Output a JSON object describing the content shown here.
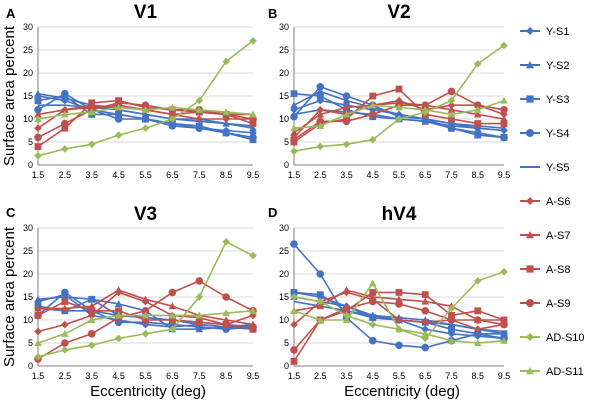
{
  "chart_data": {
    "type": "line",
    "ylabel": "Surface area percent",
    "xlabel": "Eccentricity (deg)",
    "ylim": [
      0,
      30
    ],
    "yticks": [
      0,
      5,
      10,
      15,
      20,
      25,
      30
    ],
    "grid": true,
    "legend_position": "right",
    "categories": [
      "1.5",
      "2.5",
      "3.5",
      "4.5",
      "5.5",
      "6.5",
      "7.5",
      "8.5",
      "9.5"
    ],
    "legend": [
      {
        "name": "Y-S1",
        "color": "#4472C4",
        "marker": "diamond"
      },
      {
        "name": "Y-S2",
        "color": "#4472C4",
        "marker": "triangle"
      },
      {
        "name": "Y-S3",
        "color": "#4472C4",
        "marker": "square"
      },
      {
        "name": "Y-S4",
        "color": "#4472C4",
        "marker": "circle"
      },
      {
        "name": "Y-S5",
        "color": "#4472C4",
        "marker": "none"
      },
      {
        "name": "A-S6",
        "color": "#C0504D",
        "marker": "diamond"
      },
      {
        "name": "A-S7",
        "color": "#C0504D",
        "marker": "triangle"
      },
      {
        "name": "A-S8",
        "color": "#C0504D",
        "marker": "square"
      },
      {
        "name": "A-S9",
        "color": "#C0504D",
        "marker": "circle"
      },
      {
        "name": "AD-S10",
        "color": "#9BBB59",
        "marker": "diamond"
      },
      {
        "name": "AD-S11",
        "color": "#9BBB59",
        "marker": "triangle"
      }
    ],
    "panels": [
      {
        "letter": "A",
        "title": "V1",
        "series": [
          {
            "name": "Y-S1",
            "values": [
              15,
              14,
              12,
              11,
              10,
              9,
              8,
              7.5,
              7
            ]
          },
          {
            "name": "Y-S2",
            "values": [
              15.5,
              14.5,
              13,
              12,
              11,
              10,
              10,
              9,
              8
            ]
          },
          {
            "name": "Y-S3",
            "values": [
              14,
              15,
              11,
              11,
              10,
              9,
              8.5,
              7,
              5.5
            ]
          },
          {
            "name": "Y-S4",
            "values": [
              12,
              15.5,
              12,
              10,
              10,
              8.5,
              8,
              7,
              6
            ]
          },
          {
            "name": "Y-S5",
            "values": [
              13,
              13,
              12.5,
              12,
              11,
              10,
              9.5,
              9,
              8.5
            ]
          },
          {
            "name": "A-S6",
            "values": [
              8,
              12,
              13,
              12.5,
              12,
              11,
              10,
              10,
              10
            ]
          },
          {
            "name": "A-S7",
            "values": [
              11,
              12,
              12.5,
              13,
              12,
              11,
              11.5,
              11,
              11
            ]
          },
          {
            "name": "A-S8",
            "values": [
              4,
              8,
              13.5,
              14,
              12.5,
              12,
              11.5,
              11,
              9
            ]
          },
          {
            "name": "A-S9",
            "values": [
              6,
              9,
              12,
              13.5,
              13,
              12,
              12,
              11,
              10
            ]
          },
          {
            "name": "AD-S10",
            "values": [
              2,
              3.5,
              4.5,
              6.5,
              8,
              10,
              14,
              22.5,
              27
            ]
          },
          {
            "name": "AD-S11",
            "values": [
              10,
              11,
              11.5,
              12.5,
              12,
              12.5,
              12,
              11.5,
              11
            ]
          }
        ]
      },
      {
        "letter": "B",
        "title": "V2",
        "series": [
          {
            "name": "Y-S1",
            "values": [
              12,
              14,
              13,
              12,
              11,
              10,
              9,
              8,
              7.5
            ]
          },
          {
            "name": "Y-S2",
            "values": [
              13,
              16,
              14,
              12.5,
              11,
              10,
              9,
              8.5,
              8
            ]
          },
          {
            "name": "Y-S3",
            "values": [
              15.5,
              15,
              12,
              10.5,
              10,
              9.5,
              8,
              6.5,
              6
            ]
          },
          {
            "name": "Y-S4",
            "values": [
              10.5,
              17,
              15,
              13,
              10.5,
              10,
              8,
              7,
              6
            ]
          },
          {
            "name": "Y-S5",
            "values": [
              11,
              12,
              11.5,
              11,
              10,
              9.5,
              8.5,
              8,
              7.5
            ]
          },
          {
            "name": "A-S6",
            "values": [
              6,
              12,
              11,
              13,
              14,
              12,
              13,
              13,
              11
            ]
          },
          {
            "name": "A-S7",
            "values": [
              7,
              11,
              12.5,
              13,
              13.5,
              13,
              12,
              11,
              10
            ]
          },
          {
            "name": "A-S8",
            "values": [
              5,
              9,
              10,
              15,
              16.5,
              11,
              10,
              9,
              9
            ]
          },
          {
            "name": "A-S9",
            "values": [
              5.5,
              9.5,
              9.5,
              11,
              13,
              13,
              16,
              13,
              12
            ]
          },
          {
            "name": "AD-S10",
            "values": [
              3,
              4,
              4.5,
              5.5,
              10,
              11.5,
              14,
              22,
              26
            ]
          },
          {
            "name": "AD-S11",
            "values": [
              8,
              8.5,
              11,
              13,
              12.5,
              12,
              11,
              12,
              14
            ]
          }
        ]
      },
      {
        "letter": "C",
        "title": "V3",
        "series": [
          {
            "name": "Y-S1",
            "values": [
              14,
              15.5,
              11,
              10,
              9,
              8.5,
              9,
              8.5,
              8
            ]
          },
          {
            "name": "Y-S2",
            "values": [
              14.5,
              15,
              14.5,
              13.5,
              12,
              8,
              8,
              8.5,
              9
            ]
          },
          {
            "name": "Y-S3",
            "values": [
              13,
              12,
              14.5,
              11,
              10.5,
              10,
              9,
              8.5,
              8
            ]
          },
          {
            "name": "Y-S4",
            "values": [
              11,
              16,
              12,
              9.5,
              9.5,
              9,
              8.5,
              8,
              8.5
            ]
          },
          {
            "name": "Y-S5",
            "values": [
              12.5,
              12,
              12,
              11,
              10.5,
              10,
              9.5,
              9,
              8.5
            ]
          },
          {
            "name": "A-S6",
            "values": [
              7.5,
              9,
              11,
              16,
              14,
              11,
              10.5,
              9,
              11
            ]
          },
          {
            "name": "A-S7",
            "values": [
              12.5,
              12.5,
              13,
              16.5,
              14.5,
              13,
              11,
              10,
              9
            ]
          },
          {
            "name": "A-S8",
            "values": [
              11,
              14,
              12,
              12,
              10,
              10,
              9.5,
              9,
              8
            ]
          },
          {
            "name": "A-S9",
            "values": [
              1.5,
              5,
              7,
              10.5,
              12,
              16,
              18.5,
              15,
              12
            ]
          },
          {
            "name": "AD-S10",
            "values": [
              2,
              3.5,
              4.5,
              6,
              7,
              8,
              15,
              27,
              24
            ]
          },
          {
            "name": "AD-S11",
            "values": [
              5,
              7,
              10,
              11,
              11,
              11,
              11,
              11.5,
              12
            ]
          }
        ]
      },
      {
        "letter": "D",
        "title": "hV4",
        "series": [
          {
            "name": "Y-S1",
            "values": [
              16,
              15,
              13,
              10.5,
              10,
              8,
              7,
              6.5,
              6
            ]
          },
          {
            "name": "Y-S2",
            "values": [
              15,
              14,
              13,
              11,
              10.5,
              10,
              9,
              8,
              7
            ]
          },
          {
            "name": "Y-S3",
            "values": [
              16,
              15.5,
              12,
              10.5,
              10,
              9.5,
              8,
              7,
              7
            ]
          },
          {
            "name": "Y-S4",
            "values": [
              26.5,
              20,
              10.5,
              5.5,
              4.5,
              4,
              5.5,
              7,
              6
            ]
          },
          {
            "name": "Y-S5",
            "values": [
              14,
              13,
              12,
              11,
              10,
              9.5,
              9,
              8,
              7.5
            ]
          },
          {
            "name": "A-S6",
            "values": [
              9,
              14,
              16,
              14.5,
              10,
              9.5,
              10,
              8,
              9
            ]
          },
          {
            "name": "A-S7",
            "values": [
              12,
              13,
              16.5,
              15,
              14.5,
              14,
              13,
              10,
              10
            ]
          },
          {
            "name": "A-S8",
            "values": [
              1,
              10,
              12,
              16,
              16,
              15.5,
              11,
              12,
              10
            ]
          },
          {
            "name": "A-S9",
            "values": [
              3.5,
              10,
              12.5,
              14,
              13.5,
              12,
              10,
              10,
              9
            ]
          },
          {
            "name": "AD-S10",
            "values": [
              15,
              14,
              11,
              9,
              8,
              6,
              12.5,
              18.5,
              20.5
            ]
          },
          {
            "name": "AD-S11",
            "values": [
              12,
              10,
              10,
              18,
              8,
              7,
              5.5,
              5,
              5.5
            ]
          }
        ]
      }
    ]
  }
}
